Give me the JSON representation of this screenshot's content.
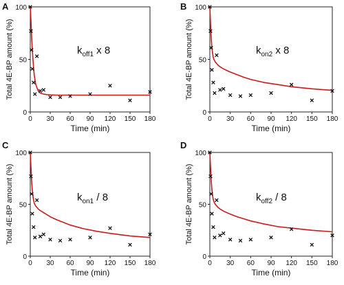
{
  "chart_data": [
    {
      "panel_label": "A",
      "type": "scatter",
      "annotation_main": "k",
      "annotation_sub": "off1",
      "annotation_suffix": " x 8",
      "xlabel": "Time (min)",
      "ylabel": "Total  4E-BP amount (%)",
      "xlim": [
        0,
        180
      ],
      "ylim": [
        0,
        100
      ],
      "x_ticks": [
        0,
        30,
        60,
        90,
        120,
        150,
        180
      ],
      "y_ticks": [
        0,
        50,
        100
      ],
      "observed": {
        "marker": "x",
        "x": [
          0,
          1,
          2,
          3,
          5,
          7,
          10,
          15,
          20,
          30,
          45,
          60,
          90,
          120,
          150,
          180
        ],
        "y": [
          100,
          77,
          59,
          41,
          28,
          17,
          53,
          20,
          21,
          14,
          14,
          15,
          17,
          25,
          11,
          19
        ]
      },
      "fit": {
        "color": "#cc1a1a",
        "x": [
          0,
          1,
          2,
          3,
          4,
          5,
          6,
          8,
          10,
          12,
          15,
          20,
          25,
          30,
          40,
          50,
          60,
          80,
          100,
          120,
          150,
          180
        ],
        "y": [
          100,
          87,
          72,
          60,
          50,
          42,
          35,
          27,
          23,
          20,
          18,
          17,
          16.5,
          16.2,
          16,
          16,
          16,
          16,
          16,
          16,
          16,
          16
        ]
      }
    },
    {
      "panel_label": "B",
      "type": "scatter",
      "annotation_main": "k",
      "annotation_sub": "on2",
      "annotation_suffix": " x 8",
      "xlabel": "Time (min)",
      "ylabel": "Total  4E-BP amount (%)",
      "xlim": [
        0,
        180
      ],
      "ylim": [
        0,
        100
      ],
      "x_ticks": [
        0,
        30,
        60,
        90,
        120,
        150,
        180
      ],
      "y_ticks": [
        0,
        50,
        100
      ],
      "observed": {
        "marker": "x",
        "x": [
          0,
          1,
          2,
          3,
          5,
          7,
          10,
          15,
          20,
          30,
          45,
          60,
          90,
          120,
          150,
          180
        ],
        "y": [
          100,
          77,
          61,
          40,
          28,
          18,
          54,
          21,
          22,
          16,
          15,
          16,
          18,
          26,
          11,
          20
        ]
      },
      "fit": {
        "color": "#cc1a1a",
        "x": [
          0,
          1,
          2,
          3,
          4,
          5,
          6,
          8,
          10,
          12,
          15,
          20,
          25,
          30,
          40,
          50,
          60,
          80,
          100,
          120,
          150,
          180
        ],
        "y": [
          100,
          84,
          70,
          61,
          56,
          52,
          50,
          47.5,
          46,
          44.5,
          43,
          41,
          39.5,
          38,
          35.5,
          33,
          31,
          28,
          26,
          24,
          22,
          20.5
        ]
      }
    },
    {
      "panel_label": "C",
      "type": "scatter",
      "annotation_main": "k",
      "annotation_sub": "on1",
      "annotation_suffix": " / 8",
      "xlabel": "Time (min)",
      "ylabel": "Total  4E-BP amount (%)",
      "xlim": [
        0,
        180
      ],
      "ylim": [
        0,
        100
      ],
      "x_ticks": [
        0,
        30,
        60,
        90,
        120,
        150,
        180
      ],
      "y_ticks": [
        0,
        50,
        100
      ],
      "observed": {
        "marker": "x",
        "x": [
          0,
          1,
          2,
          3,
          5,
          7,
          10,
          15,
          20,
          30,
          45,
          60,
          90,
          120,
          150,
          180
        ],
        "y": [
          100,
          77,
          60,
          41,
          28,
          18,
          54,
          19,
          21,
          16,
          15,
          16,
          18,
          27,
          11,
          21
        ]
      },
      "fit": {
        "color": "#cc1a1a",
        "x": [
          0,
          1,
          2,
          3,
          4,
          5,
          6,
          8,
          10,
          12,
          15,
          20,
          25,
          30,
          40,
          50,
          60,
          80,
          100,
          120,
          150,
          180
        ],
        "y": [
          100,
          86,
          73,
          64,
          58,
          54,
          51,
          48.5,
          47,
          45.5,
          44,
          42,
          40,
          38,
          35,
          32.5,
          30,
          26.5,
          24,
          22,
          19.5,
          18
        ]
      }
    },
    {
      "panel_label": "D",
      "type": "scatter",
      "annotation_main": "k",
      "annotation_sub": "off2",
      "annotation_suffix": " / 8",
      "xlabel": "Time (min)",
      "ylabel": "Total  4E-BP amount (%)",
      "xlim": [
        0,
        180
      ],
      "ylim": [
        0,
        100
      ],
      "x_ticks": [
        0,
        30,
        60,
        90,
        120,
        150,
        180
      ],
      "y_ticks": [
        0,
        50,
        100
      ],
      "observed": {
        "marker": "x",
        "x": [
          0,
          1,
          2,
          3,
          5,
          7,
          10,
          15,
          20,
          30,
          45,
          60,
          90,
          120,
          150,
          180
        ],
        "y": [
          100,
          77,
          60,
          41,
          28,
          18,
          54,
          20,
          22,
          16,
          15,
          16,
          18,
          26,
          11,
          20
        ]
      },
      "fit": {
        "color": "#cc1a1a",
        "x": [
          0,
          1,
          2,
          3,
          4,
          5,
          6,
          8,
          10,
          12,
          15,
          20,
          25,
          30,
          40,
          50,
          60,
          80,
          100,
          120,
          150,
          180
        ],
        "y": [
          100,
          86,
          73,
          64,
          58,
          55,
          52.5,
          50,
          48.5,
          47,
          45.5,
          43.5,
          42,
          40.5,
          38,
          36,
          34,
          31,
          28.5,
          27,
          25,
          23.5
        ]
      }
    }
  ]
}
